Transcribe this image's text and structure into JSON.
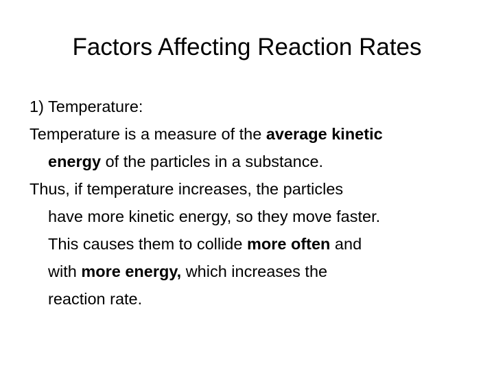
{
  "title": "Factors Affecting Reaction Rates",
  "paragraphs": [
    {
      "lines": [
        {
          "runs": [
            {
              "text": "1) Temperature:"
            }
          ]
        }
      ]
    },
    {
      "lines": [
        {
          "runs": [
            {
              "text": "Temperature is a measure of the "
            },
            {
              "text": "average kinetic",
              "bold": true
            }
          ]
        },
        {
          "runs": [
            {
              "text": "energy",
              "bold": true
            },
            {
              "text": " of the particles in a substance."
            }
          ]
        }
      ]
    },
    {
      "lines": [
        {
          "runs": [
            {
              "text": "Thus, if temperature increases, the particles"
            }
          ]
        },
        {
          "runs": [
            {
              "text": "have more kinetic energy, so they move faster."
            }
          ]
        },
        {
          "runs": [
            {
              "text": "This causes them to collide "
            },
            {
              "text": "more often",
              "bold": true
            },
            {
              "text": " and"
            }
          ]
        },
        {
          "runs": [
            {
              "text": "with "
            },
            {
              "text": "more energy,",
              "bold": true
            },
            {
              "text": " which increases the"
            }
          ]
        },
        {
          "runs": [
            {
              "text": "reaction rate."
            }
          ]
        }
      ]
    }
  ]
}
